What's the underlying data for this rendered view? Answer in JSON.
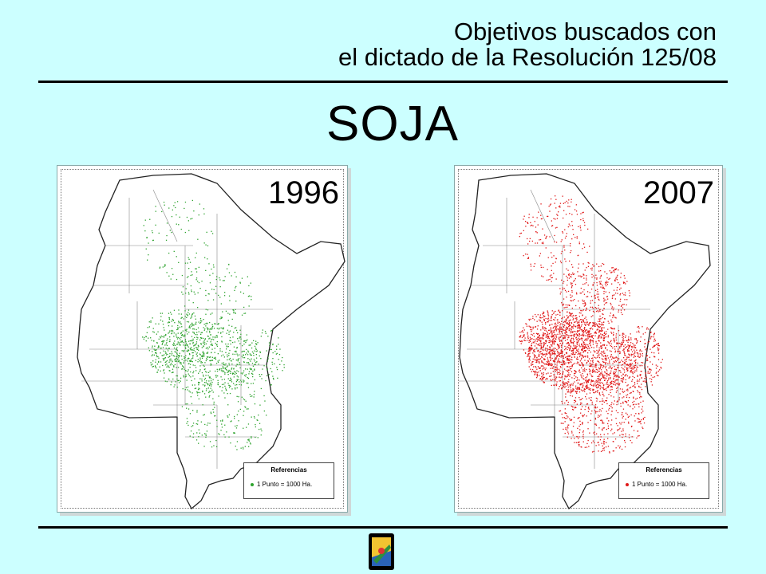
{
  "header": {
    "line1": "Objetivos buscados con",
    "line2": "el dictado de la Resolución 125/08"
  },
  "title": "SOJA",
  "maps": [
    {
      "year": "1996",
      "color": "#2ea32e",
      "legend_title": "Referencias",
      "legend_item": "1 Punto = 1000 Ha."
    },
    {
      "year": "2007",
      "color": "#e01818",
      "legend_title": "Referencias",
      "legend_item": "1 Punto = 1000 Ha."
    }
  ]
}
